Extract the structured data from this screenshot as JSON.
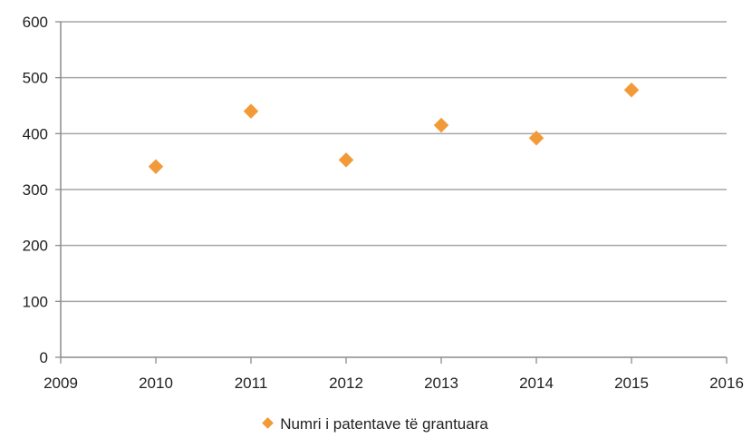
{
  "chart_data": {
    "type": "scatter",
    "title": "",
    "xlabel": "",
    "ylabel": "",
    "xlim": [
      2009,
      2016
    ],
    "ylim": [
      0,
      600
    ],
    "xticks": [
      "2009",
      "2010",
      "2011",
      "2012",
      "2013",
      "2014",
      "2015",
      "2016"
    ],
    "yticks": [
      "0",
      "100",
      "200",
      "300",
      "400",
      "500",
      "600"
    ],
    "grid": "horizontal",
    "legend_position": "bottom",
    "marker": "diamond",
    "series": [
      {
        "name": "Numri i patentave të grantuara",
        "color": "#f39a38",
        "points": [
          {
            "x": 2010,
            "y": 341
          },
          {
            "x": 2011,
            "y": 440
          },
          {
            "x": 2012,
            "y": 353
          },
          {
            "x": 2013,
            "y": 415
          },
          {
            "x": 2014,
            "y": 392
          },
          {
            "x": 2015,
            "y": 478
          }
        ]
      }
    ]
  }
}
